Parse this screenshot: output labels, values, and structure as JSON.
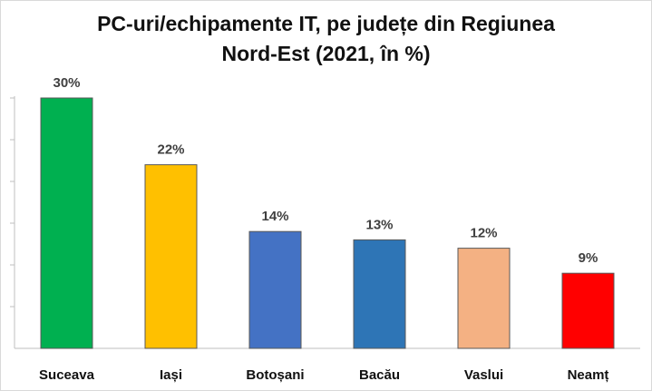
{
  "chart_data": {
    "type": "bar",
    "title_line1": "PC-uri/echipamente IT, pe județe din Regiunea",
    "title_line2": "Nord-Est (2021, în %)",
    "categories": [
      "Suceava",
      "Iași",
      "Botoșani",
      "Bacău",
      "Vaslui",
      "Neamț"
    ],
    "values": [
      30,
      22,
      14,
      13,
      12,
      9
    ],
    "data_labels": [
      "30%",
      "22%",
      "14%",
      "13%",
      "12%",
      "9%"
    ],
    "colors": [
      "#00b050",
      "#ffc000",
      "#4472c4",
      "#2e75b6",
      "#f4b183",
      "#ff0000"
    ],
    "ylim": [
      0,
      30
    ],
    "grid": false,
    "legend": "none"
  }
}
